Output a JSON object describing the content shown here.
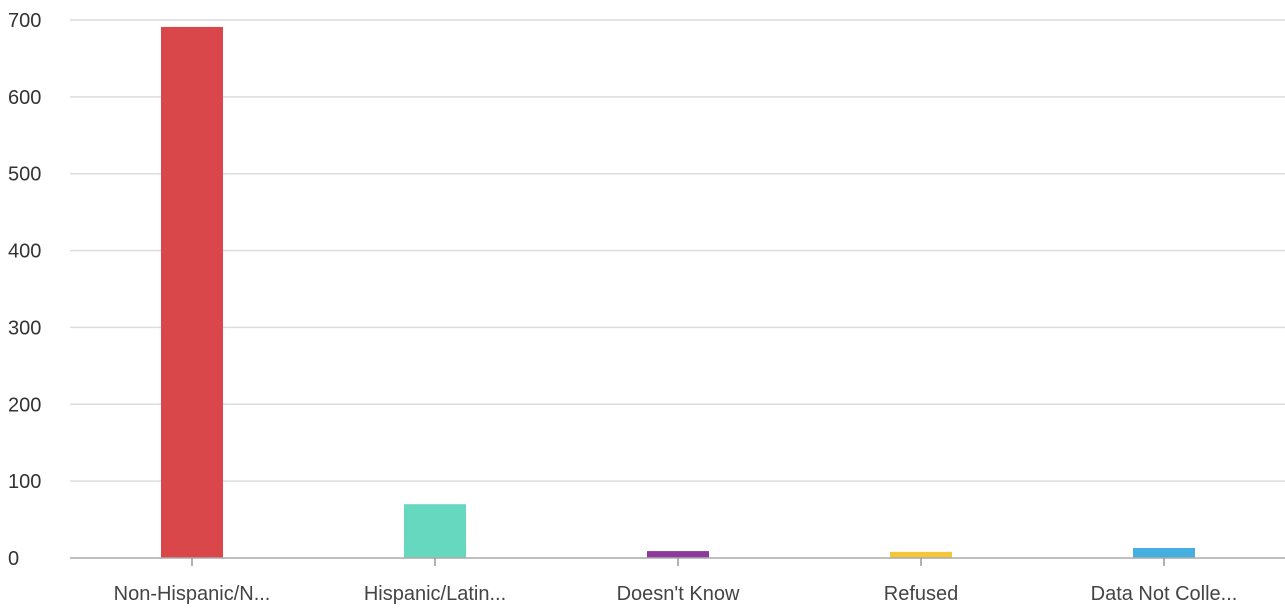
{
  "chart_data": {
    "type": "bar",
    "title": "",
    "xlabel": "",
    "ylabel": "",
    "categories": [
      "Non-Hispanic/N...",
      "Hispanic/Latin...",
      "Doesn't Know",
      "Refused",
      "Data Not Colle..."
    ],
    "values": [
      691,
      70,
      9,
      8,
      13
    ],
    "colors": [
      "#d9474a",
      "#66d8bf",
      "#8e3a9c",
      "#f2c83a",
      "#45b0e0"
    ],
    "ylim": [
      0,
      700
    ],
    "yticks": [
      0,
      100,
      200,
      300,
      400,
      500,
      600,
      700
    ],
    "grid": true,
    "legend": "none"
  }
}
